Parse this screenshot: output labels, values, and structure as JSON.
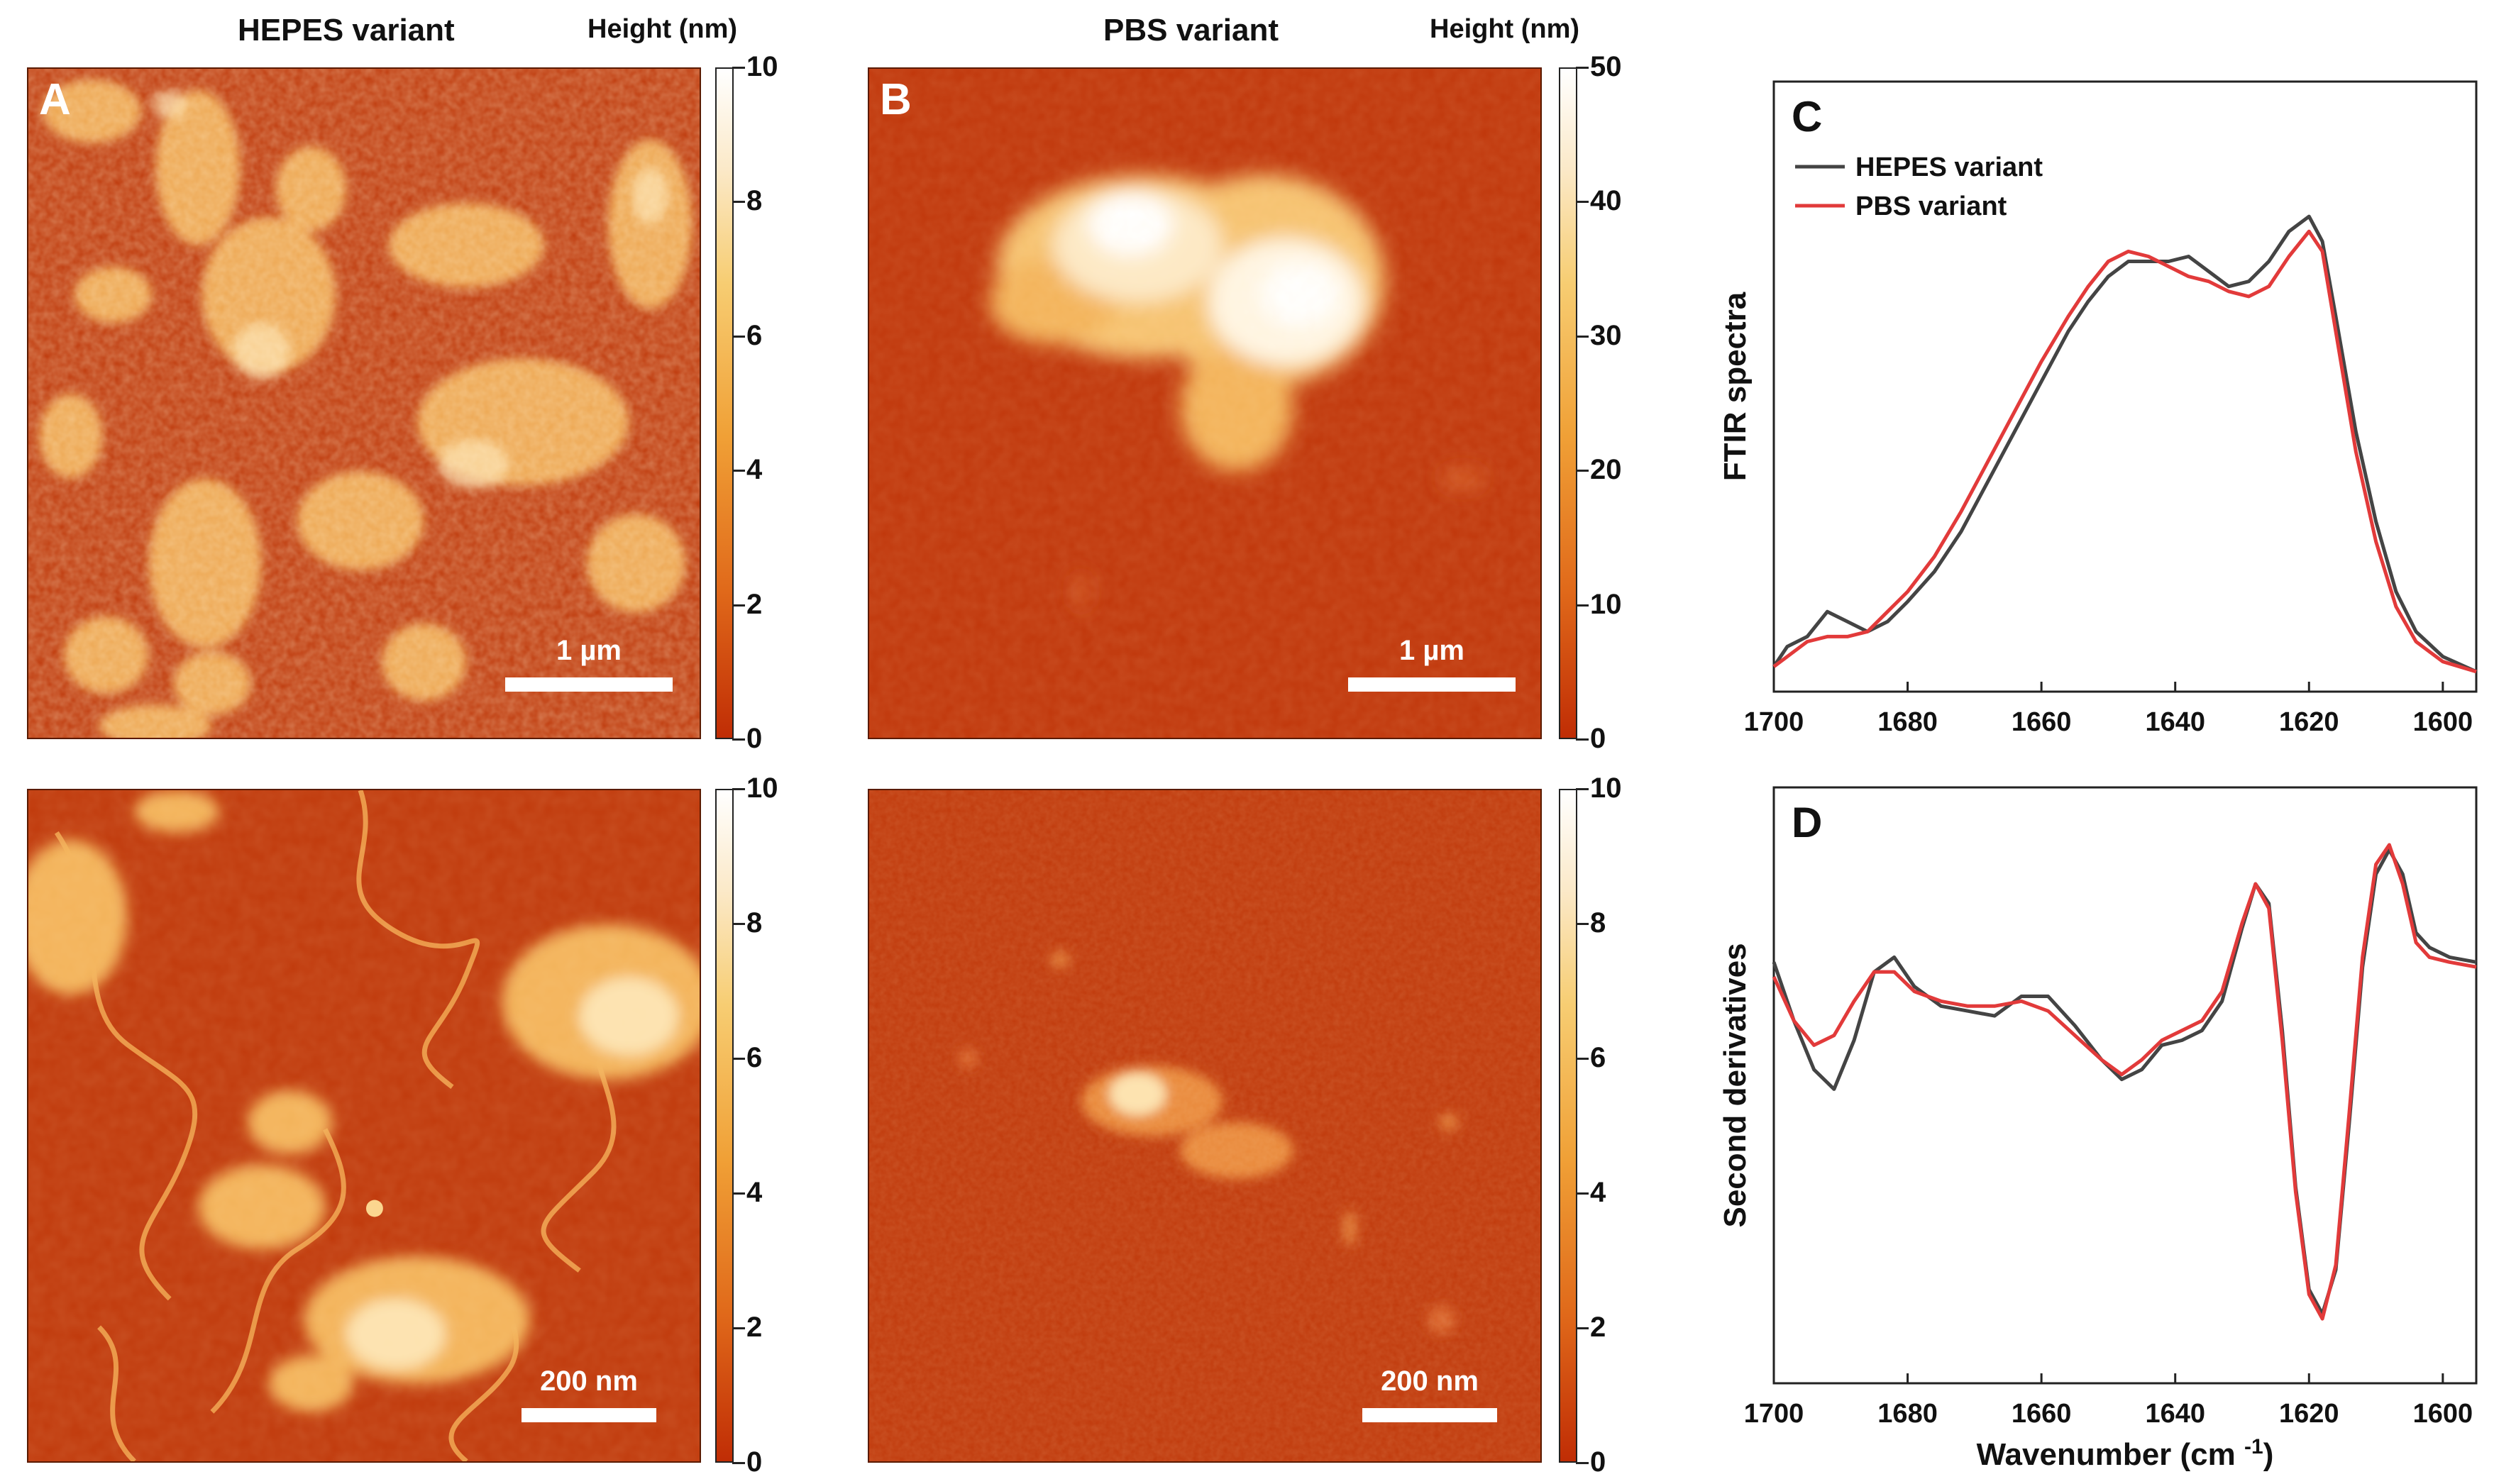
{
  "afm": {
    "column_a_title": "HEPES variant",
    "column_b_title": "PBS variant",
    "colorbar_title": "Height (nm)",
    "panels": [
      {
        "id": "A",
        "letter": "A",
        "scale_label": "1 µm",
        "cb_ticks": [
          "0",
          "2",
          "4",
          "6",
          "8",
          "10"
        ]
      },
      {
        "id": "B",
        "letter": "B",
        "scale_label": "1 µm",
        "cb_ticks": [
          "0",
          "10",
          "20",
          "30",
          "40",
          "50"
        ]
      },
      {
        "id": "A2",
        "letter": "",
        "scale_label": "200 nm",
        "cb_ticks": [
          "0",
          "2",
          "4",
          "6",
          "8",
          "10"
        ]
      },
      {
        "id": "B2",
        "letter": "",
        "scale_label": "200 nm",
        "cb_ticks": [
          "0",
          "2",
          "4",
          "6",
          "8",
          "10"
        ]
      }
    ],
    "colors": {
      "background": "#bf3a0c",
      "highlight": "#fff2d6"
    }
  },
  "chart_data": [
    {
      "panel": "C",
      "type": "line",
      "title": "",
      "xlabel": "",
      "ylabel": "FTIR spectra",
      "xlim": [
        1700,
        1595
      ],
      "xticks": [
        1700,
        1680,
        1660,
        1640,
        1620,
        1600
      ],
      "ylim": [
        0,
        1
      ],
      "legend": "top-left",
      "series": [
        {
          "name": "HEPES variant",
          "color": "#444444",
          "x": [
            1700,
            1698,
            1695,
            1692,
            1689,
            1686,
            1683,
            1680,
            1676,
            1672,
            1668,
            1664,
            1660,
            1656,
            1653,
            1650,
            1647,
            1644,
            1641,
            1638,
            1635,
            1632,
            1629,
            1626,
            1623,
            1620,
            1618,
            1616,
            1613,
            1610,
            1607,
            1604,
            1600,
            1595
          ],
          "y": [
            0.05,
            0.09,
            0.11,
            0.16,
            0.14,
            0.12,
            0.14,
            0.18,
            0.24,
            0.32,
            0.42,
            0.52,
            0.62,
            0.72,
            0.78,
            0.83,
            0.86,
            0.86,
            0.86,
            0.87,
            0.84,
            0.81,
            0.82,
            0.86,
            0.92,
            0.95,
            0.9,
            0.75,
            0.52,
            0.34,
            0.2,
            0.12,
            0.07,
            0.04
          ]
        },
        {
          "name": "PBS variant",
          "color": "#e23a3a",
          "x": [
            1700,
            1698,
            1695,
            1692,
            1689,
            1686,
            1683,
            1680,
            1676,
            1672,
            1668,
            1664,
            1660,
            1656,
            1653,
            1650,
            1647,
            1644,
            1641,
            1638,
            1635,
            1632,
            1629,
            1626,
            1623,
            1620,
            1618,
            1616,
            1613,
            1610,
            1607,
            1604,
            1600,
            1595
          ],
          "y": [
            0.05,
            0.07,
            0.1,
            0.11,
            0.11,
            0.12,
            0.16,
            0.2,
            0.27,
            0.36,
            0.46,
            0.56,
            0.66,
            0.75,
            0.81,
            0.86,
            0.88,
            0.87,
            0.85,
            0.83,
            0.82,
            0.8,
            0.79,
            0.81,
            0.87,
            0.92,
            0.88,
            0.72,
            0.48,
            0.3,
            0.17,
            0.1,
            0.06,
            0.04
          ]
        }
      ]
    },
    {
      "panel": "D",
      "type": "line",
      "title": "",
      "xlabel": "Wavenumber (cm ",
      "xlabel_sup": "-1",
      "xlabel_end": ")",
      "ylabel": "Second derivatives",
      "xlim": [
        1700,
        1595
      ],
      "xticks": [
        1700,
        1680,
        1660,
        1640,
        1620,
        1600
      ],
      "ylim": [
        0,
        1
      ],
      "series": [
        {
          "name": "HEPES variant",
          "color": "#444444",
          "x": [
            1700,
            1697,
            1694,
            1691,
            1688,
            1685,
            1682,
            1679,
            1675,
            1671,
            1667,
            1663,
            1659,
            1655,
            1651,
            1648,
            1645,
            1642,
            1639,
            1636,
            1633,
            1630,
            1628,
            1626,
            1624,
            1622,
            1620,
            1618,
            1616,
            1614,
            1612,
            1610,
            1608,
            1606,
            1604,
            1602,
            1599,
            1595
          ],
          "y": [
            0.74,
            0.62,
            0.52,
            0.48,
            0.58,
            0.72,
            0.75,
            0.69,
            0.65,
            0.64,
            0.63,
            0.67,
            0.67,
            0.61,
            0.54,
            0.5,
            0.52,
            0.57,
            0.58,
            0.6,
            0.66,
            0.81,
            0.9,
            0.86,
            0.6,
            0.28,
            0.07,
            0.02,
            0.11,
            0.41,
            0.73,
            0.92,
            0.97,
            0.92,
            0.8,
            0.77,
            0.75,
            0.74
          ]
        },
        {
          "name": "PBS variant",
          "color": "#e23a3a",
          "x": [
            1700,
            1697,
            1694,
            1691,
            1688,
            1685,
            1682,
            1679,
            1675,
            1671,
            1667,
            1663,
            1659,
            1655,
            1651,
            1648,
            1645,
            1642,
            1639,
            1636,
            1633,
            1630,
            1628,
            1626,
            1624,
            1622,
            1620,
            1618,
            1616,
            1614,
            1612,
            1610,
            1608,
            1606,
            1604,
            1602,
            1599,
            1595
          ],
          "y": [
            0.71,
            0.62,
            0.57,
            0.59,
            0.66,
            0.72,
            0.72,
            0.68,
            0.66,
            0.65,
            0.65,
            0.66,
            0.64,
            0.59,
            0.54,
            0.51,
            0.54,
            0.58,
            0.6,
            0.62,
            0.68,
            0.82,
            0.9,
            0.85,
            0.58,
            0.27,
            0.06,
            0.01,
            0.12,
            0.43,
            0.75,
            0.94,
            0.98,
            0.9,
            0.78,
            0.75,
            0.74,
            0.73
          ]
        }
      ]
    }
  ]
}
